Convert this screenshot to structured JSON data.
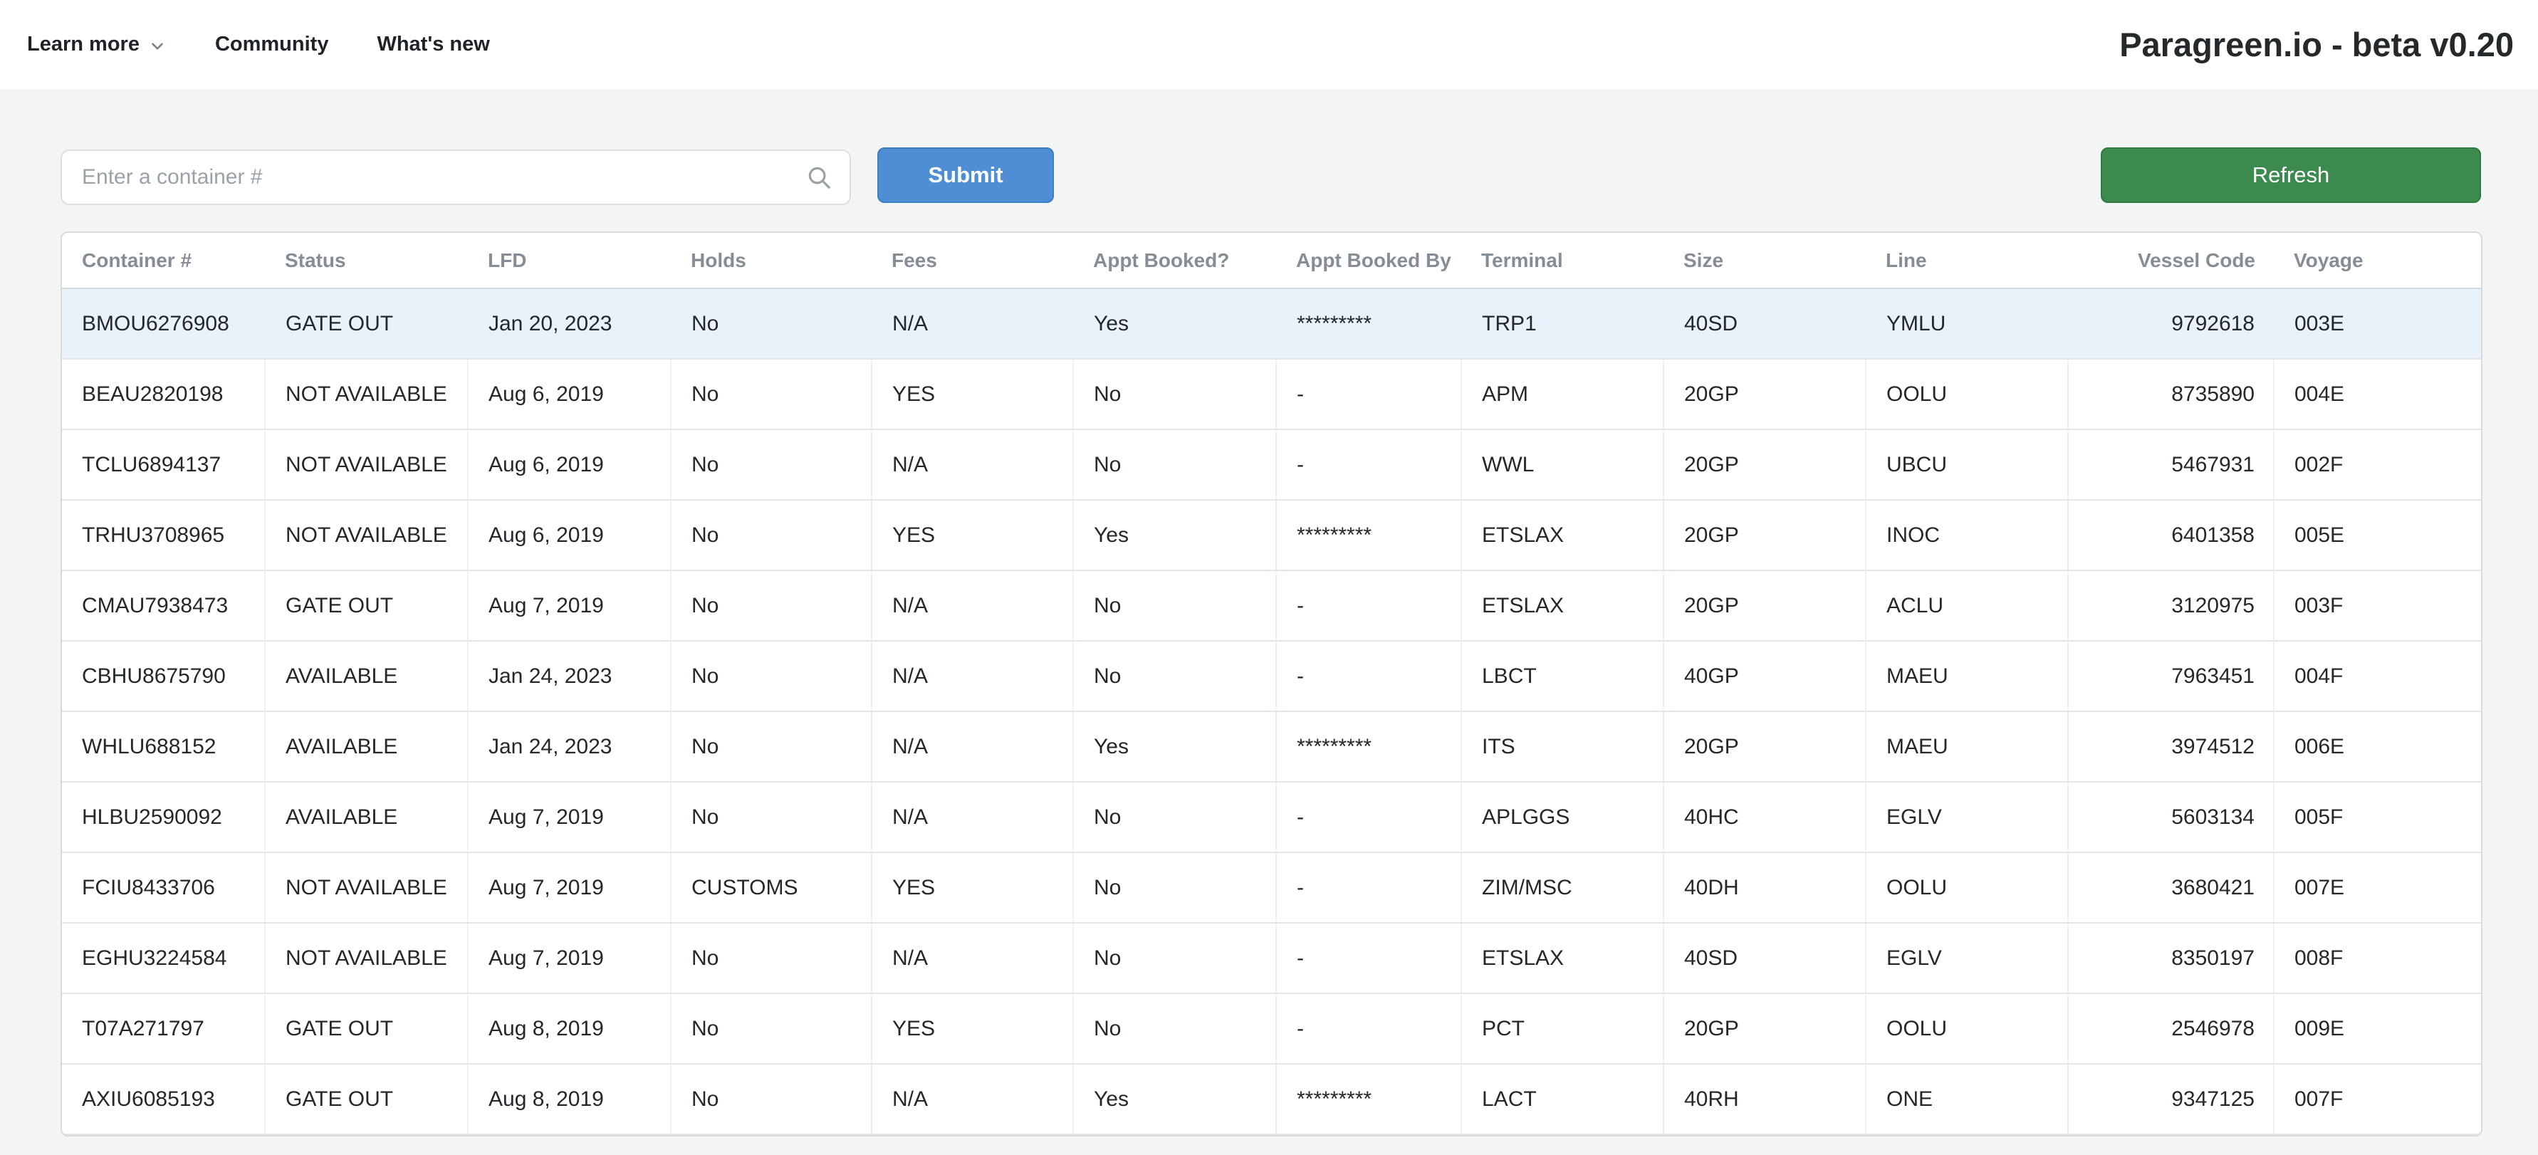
{
  "header": {
    "nav": [
      {
        "label": "Learn more",
        "has_dropdown": true
      },
      {
        "label": "Community",
        "has_dropdown": false
      },
      {
        "label": "What's new",
        "has_dropdown": false
      }
    ],
    "title": "Paragreen.io - beta v0.20"
  },
  "controls": {
    "search_placeholder": "Enter a container #",
    "search_icon": "magnifier-icon",
    "submit_label": "Submit",
    "refresh_label": "Refresh",
    "submit_color": "#4f8ed4",
    "refresh_color": "#3c8a4d"
  },
  "table": {
    "columns": [
      "Container #",
      "Status",
      "LFD",
      "Holds",
      "Fees",
      "Appt Booked?",
      "Appt Booked By",
      "Terminal",
      "Size",
      "Line",
      "Vessel Code",
      "Voyage"
    ],
    "selected_row_index": 0,
    "selected_row_color": "#e9f2fb",
    "rows": [
      [
        "BMOU6276908",
        "GATE OUT",
        "Jan 20, 2023",
        "No",
        "N/A",
        "Yes",
        "*********",
        "TRP1",
        "40SD",
        "YMLU",
        "9792618",
        "003E"
      ],
      [
        "BEAU2820198",
        "NOT AVAILABLE",
        "Aug 6, 2019",
        "No",
        "YES",
        "No",
        "-",
        "APM",
        "20GP",
        "OOLU",
        "8735890",
        "004E"
      ],
      [
        "TCLU6894137",
        "NOT AVAILABLE",
        "Aug 6, 2019",
        "No",
        "N/A",
        "No",
        "-",
        "WWL",
        "20GP",
        "UBCU",
        "5467931",
        "002F"
      ],
      [
        "TRHU3708965",
        "NOT AVAILABLE",
        "Aug 6, 2019",
        "No",
        "YES",
        "Yes",
        "*********",
        "ETSLAX",
        "20GP",
        "INOC",
        "6401358",
        "005E"
      ],
      [
        "CMAU7938473",
        "GATE OUT",
        "Aug 7, 2019",
        "No",
        "N/A",
        "No",
        "-",
        "ETSLAX",
        "20GP",
        "ACLU",
        "3120975",
        "003F"
      ],
      [
        "CBHU8675790",
        "AVAILABLE",
        "Jan 24, 2023",
        "No",
        "N/A",
        "No",
        "-",
        "LBCT",
        "40GP",
        "MAEU",
        "7963451",
        "004F"
      ],
      [
        "WHLU688152",
        "AVAILABLE",
        "Jan 24, 2023",
        "No",
        "N/A",
        "Yes",
        "*********",
        "ITS",
        "20GP",
        "MAEU",
        "3974512",
        "006E"
      ],
      [
        "HLBU2590092",
        "AVAILABLE",
        "Aug 7, 2019",
        "No",
        "N/A",
        "No",
        "-",
        "APLGGS",
        "40HC",
        "EGLV",
        "5603134",
        "005F"
      ],
      [
        "FCIU8433706",
        "NOT AVAILABLE",
        "Aug 7, 2019",
        "CUSTOMS",
        "YES",
        "No",
        "-",
        "ZIM/MSC",
        "40DH",
        "OOLU",
        "3680421",
        "007E"
      ],
      [
        "EGHU3224584",
        "NOT AVAILABLE",
        "Aug 7, 2019",
        "No",
        "N/A",
        "No",
        "-",
        "ETSLAX",
        "40SD",
        "EGLV",
        "8350197",
        "008F"
      ],
      [
        "T07A271797",
        "GATE OUT",
        "Aug 8, 2019",
        "No",
        "YES",
        "No",
        "-",
        "PCT",
        "20GP",
        "OOLU",
        "2546978",
        "009E"
      ],
      [
        "AXIU6085193",
        "GATE OUT",
        "Aug 8, 2019",
        "No",
        "N/A",
        "Yes",
        "*********",
        "LACT",
        "40RH",
        "ONE",
        "9347125",
        "007F"
      ]
    ]
  }
}
